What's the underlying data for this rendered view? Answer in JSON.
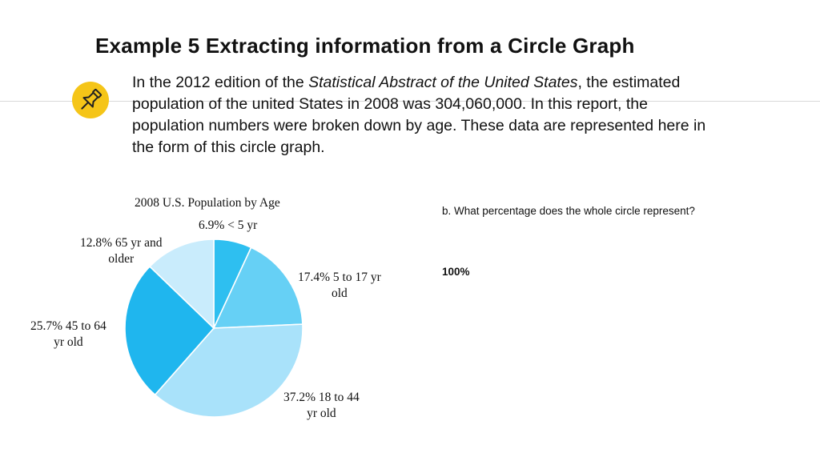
{
  "slide": {
    "title": "Example 5  Extracting information from a Circle Graph",
    "intro_before": "In the 2012 edition of the ",
    "intro_italic": "Statistical Abstract of the United States",
    "intro_after": ", the estimated population of the united States in 2008 was 304,060,000. In this report, the population numbers were broken down by age. These data are represented here in the form of this circle graph.",
    "question": "b. What percentage does the whole circle represent?",
    "answer": "100%",
    "pin_icon": "pushpin-icon",
    "pin_badge_color": "#f5c518"
  },
  "chart_data": {
    "type": "pie",
    "title": "2008 U.S. Population by Age",
    "slices": [
      {
        "label_line1": "6.9%  < 5 yr",
        "label_line2": "",
        "value": 6.9,
        "color": "#2ebff0"
      },
      {
        "label_line1": "17.4% 5 to 17 yr",
        "label_line2": "old",
        "value": 17.4,
        "color": "#66d0f5"
      },
      {
        "label_line1": "37.2% 18 to 44",
        "label_line2": "yr old",
        "value": 37.2,
        "color": "#a9e2fa"
      },
      {
        "label_line1": "25.7% 45 to 64",
        "label_line2": "yr old",
        "value": 25.7,
        "color": "#1fb6ee"
      },
      {
        "label_line1": "12.8% 65 yr and",
        "label_line2": "older",
        "value": 12.8,
        "color": "#c9ecfc"
      }
    ],
    "start_angle": "12 o'clock",
    "direction": "clockwise",
    "legend": "none"
  }
}
